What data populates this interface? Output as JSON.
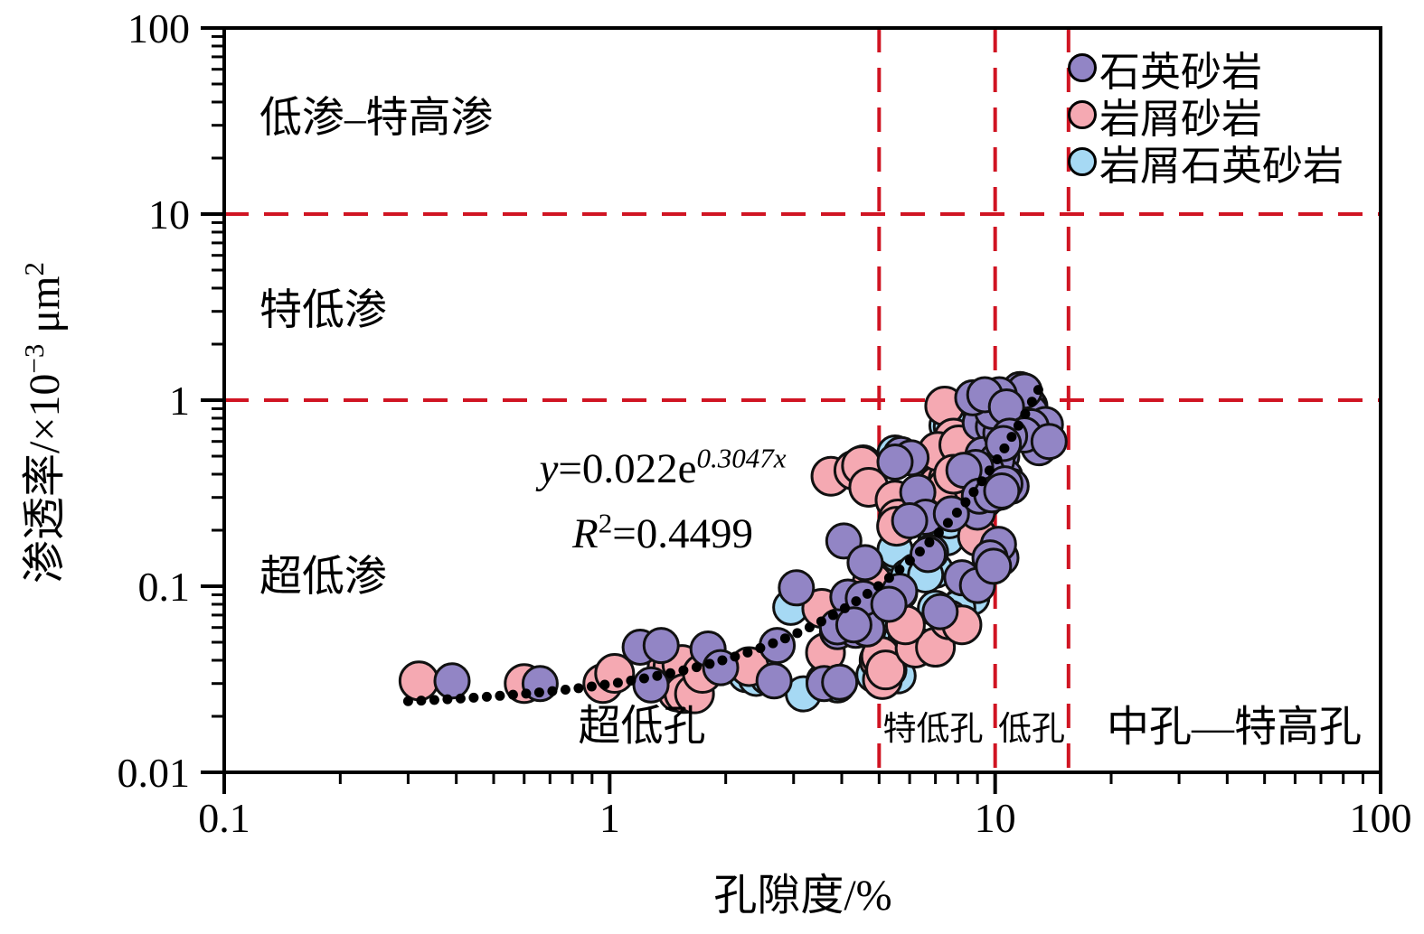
{
  "figure": {
    "background": "#FFFFFF"
  },
  "chart_data": {
    "type": "scatter",
    "x_axis": {
      "label": "孔隙度/%",
      "scale": "log",
      "min": 0.1,
      "max": 100,
      "ticks": [
        "0.1",
        "1",
        "10",
        "100"
      ]
    },
    "y_axis": {
      "label": "渗透率/×10⁻³ μm²",
      "scale": "log",
      "min": 0.01,
      "max": 100,
      "ticks": [
        "0.01",
        "0.1",
        "1",
        "10",
        "100"
      ]
    },
    "y_title_parts": {
      "base1": "渗透率/×10",
      "sup1": "−3",
      "base2": " μm",
      "sup2": "2"
    },
    "reference_lines": {
      "color": "#D01422",
      "style": "dashed",
      "horizontal_y": [
        10,
        1
      ],
      "vertical_x": [
        5,
        10,
        15.5
      ]
    },
    "trend": {
      "equation": "y=0.022e^(0.3047x)",
      "a": 0.022,
      "b": 0.3047,
      "r2": 0.4499,
      "x_start": 0.3,
      "x_end": 13.4,
      "color": "#000000",
      "style": "dotted"
    },
    "series": [
      {
        "name": "石英砂岩",
        "color": "#9285C5",
        "marker_radius": 19,
        "points": [
          [
            0.39,
            0.031
          ],
          [
            0.66,
            0.03
          ],
          [
            1.2,
            0.047
          ],
          [
            1.36,
            0.048
          ],
          [
            1.28,
            0.0295
          ],
          [
            1.8,
            0.046
          ],
          [
            1.94,
            0.0365
          ],
          [
            2.67,
            0.031
          ],
          [
            2.72,
            0.048
          ],
          [
            3.6,
            0.03
          ],
          [
            3.95,
            0.0305
          ],
          [
            3.05,
            0.098
          ],
          [
            3.9,
            0.057
          ],
          [
            4.35,
            0.058
          ],
          [
            4.65,
            0.059
          ],
          [
            4.05,
            0.175
          ],
          [
            4.6,
            0.134
          ],
          [
            4.15,
            0.0875
          ],
          [
            4.55,
            0.086
          ],
          [
            3.9,
            0.0605
          ],
          [
            4.3,
            0.062
          ],
          [
            5.65,
            0.094
          ],
          [
            5.3,
            0.08
          ],
          [
            6.8,
            0.152
          ],
          [
            6.7,
            0.148
          ],
          [
            8.2,
            0.111
          ],
          [
            9.0,
            0.101
          ],
          [
            10.05,
            0.155
          ],
          [
            10.35,
            0.142
          ],
          [
            5.7,
            0.51
          ],
          [
            6.05,
            0.49
          ],
          [
            5.5,
            0.465
          ],
          [
            6.3,
            0.32
          ],
          [
            6.6,
            0.235
          ],
          [
            6.0,
            0.225
          ],
          [
            9.4,
            0.49
          ],
          [
            9.85,
            0.53
          ],
          [
            10.4,
            0.5
          ],
          [
            10.6,
            0.39
          ],
          [
            11.0,
            0.345
          ],
          [
            10.3,
            0.32
          ],
          [
            9.4,
            0.29
          ],
          [
            9.0,
            0.25
          ],
          [
            10.2,
            0.168
          ],
          [
            9.7,
            0.142
          ],
          [
            9.9,
            0.128
          ],
          [
            8.9,
            0.99
          ],
          [
            9.7,
            0.9
          ],
          [
            10.1,
            0.95
          ],
          [
            9.15,
            0.755
          ],
          [
            9.9,
            0.72
          ],
          [
            10.5,
            0.76
          ],
          [
            11.6,
            1.14
          ],
          [
            12.3,
            0.93
          ],
          [
            11.8,
            0.8
          ],
          [
            10.3,
            0.545
          ],
          [
            9.3,
            0.51
          ],
          [
            10.1,
            0.475
          ],
          [
            9.5,
            0.415
          ],
          [
            8.9,
            0.435
          ],
          [
            8.3,
            0.42
          ],
          [
            12.1,
            0.98
          ],
          [
            12.35,
            0.86
          ],
          [
            10.9,
            0.655
          ],
          [
            10.35,
            0.665
          ],
          [
            13.5,
            0.74
          ],
          [
            12.9,
            0.63
          ],
          [
            12.1,
            0.7
          ],
          [
            13.2,
            0.58
          ],
          [
            13.0,
            0.555
          ],
          [
            12.4,
            0.72
          ],
          [
            11.9,
            1.12
          ],
          [
            10.25,
            1.07
          ],
          [
            9.85,
            0.87
          ],
          [
            8.75,
            1.03
          ],
          [
            9.4,
            1.07
          ],
          [
            10.7,
            0.92
          ],
          [
            7.7,
            0.245
          ],
          [
            7.2,
            0.073
          ],
          [
            9.1,
            0.305
          ],
          [
            9.8,
            0.31
          ],
          [
            10.6,
            0.355
          ],
          [
            10.4,
            0.325
          ],
          [
            11.9,
            0.65
          ],
          [
            10.9,
            0.64
          ],
          [
            10.5,
            0.585
          ],
          [
            13.8,
            0.6
          ]
        ]
      },
      {
        "name": "岩屑砂岩",
        "color": "#F5A9B2",
        "marker_radius": 21,
        "points": [
          [
            0.32,
            0.031
          ],
          [
            0.6,
            0.03
          ],
          [
            0.96,
            0.03
          ],
          [
            1.03,
            0.034
          ],
          [
            1.41,
            0.037
          ],
          [
            1.5,
            0.027
          ],
          [
            1.46,
            0.037
          ],
          [
            1.54,
            0.038
          ],
          [
            1.56,
            0.0265
          ],
          [
            1.66,
            0.0264
          ],
          [
            1.74,
            0.034
          ],
          [
            2.3,
            0.037
          ],
          [
            3.55,
            0.076
          ],
          [
            3.63,
            0.044
          ],
          [
            5.0,
            0.04
          ],
          [
            5.1,
            0.0315
          ],
          [
            5.05,
            0.042
          ],
          [
            5.2,
            0.0355
          ],
          [
            6.2,
            0.0465
          ],
          [
            7.0,
            0.047
          ],
          [
            5.85,
            0.062
          ],
          [
            4.8,
            0.105
          ],
          [
            3.75,
            0.39
          ],
          [
            4.3,
            0.42
          ],
          [
            4.5,
            0.445
          ],
          [
            4.7,
            0.34
          ],
          [
            5.5,
            0.29
          ],
          [
            5.6,
            0.23
          ],
          [
            5.55,
            0.21
          ],
          [
            7.1,
            0.35
          ],
          [
            7.55,
            0.375
          ],
          [
            7.4,
            0.93
          ],
          [
            7.8,
            0.625
          ],
          [
            7.1,
            0.53
          ],
          [
            8.05,
            0.575
          ],
          [
            8.3,
            0.315
          ],
          [
            9.0,
            0.185
          ],
          [
            9.0,
            0.355
          ],
          [
            7.5,
            0.34
          ],
          [
            8.8,
            0.335
          ],
          [
            7.6,
            0.066
          ],
          [
            8.2,
            0.062
          ],
          [
            7.8,
            0.4
          ]
        ]
      },
      {
        "name": "岩屑石英砂岩",
        "color": "#A6D9F4",
        "marker_radius": 19,
        "points": [
          [
            2.26,
            0.0335
          ],
          [
            2.4,
            0.032
          ],
          [
            2.57,
            0.0325
          ],
          [
            3.18,
            0.0264
          ],
          [
            2.95,
            0.077
          ],
          [
            3.6,
            0.031
          ],
          [
            3.9,
            0.0295
          ],
          [
            4.85,
            0.0335
          ],
          [
            5.1,
            0.031
          ],
          [
            5.6,
            0.033
          ],
          [
            5.3,
            0.0355
          ],
          [
            4.5,
            0.087
          ],
          [
            4.65,
            0.09
          ],
          [
            4.85,
            0.059
          ],
          [
            5.25,
            0.12
          ],
          [
            5.55,
            0.149
          ],
          [
            5.5,
            0.157
          ],
          [
            5.95,
            0.113
          ],
          [
            6.7,
            0.125
          ],
          [
            7.0,
            0.122
          ],
          [
            7.0,
            0.076
          ],
          [
            8.2,
            0.08
          ],
          [
            8.7,
            0.087
          ],
          [
            5.7,
            0.052
          ],
          [
            5.85,
            0.05
          ],
          [
            6.3,
            0.048
          ],
          [
            7.0,
            0.17
          ],
          [
            7.5,
            0.182
          ],
          [
            7.6,
            0.225
          ],
          [
            6.2,
            0.12
          ],
          [
            6.6,
            0.115
          ],
          [
            5.4,
            0.092
          ],
          [
            5.65,
            0.092
          ],
          [
            7.5,
            0.73
          ],
          [
            7.7,
            0.72
          ],
          [
            7.6,
            0.5
          ],
          [
            4.55,
            0.46
          ],
          [
            5.5,
            0.52
          ],
          [
            8.0,
            0.076
          ]
        ]
      }
    ],
    "zones": {
      "permeability": [
        {
          "label": "低渗–特高渗"
        },
        {
          "label": "特低渗"
        },
        {
          "label": "超低渗"
        }
      ],
      "porosity": [
        {
          "label": "超低孔"
        },
        {
          "label": "特低孔"
        },
        {
          "label": "低孔"
        },
        {
          "label": "中孔—特高孔"
        }
      ]
    },
    "equation": {
      "y": "y",
      "body": "=0.022e",
      "exp": "0.3047x",
      "r": "R",
      "rsup": "2",
      "rval": "=0.4499"
    },
    "legend_position": "top-right",
    "grid": false
  }
}
